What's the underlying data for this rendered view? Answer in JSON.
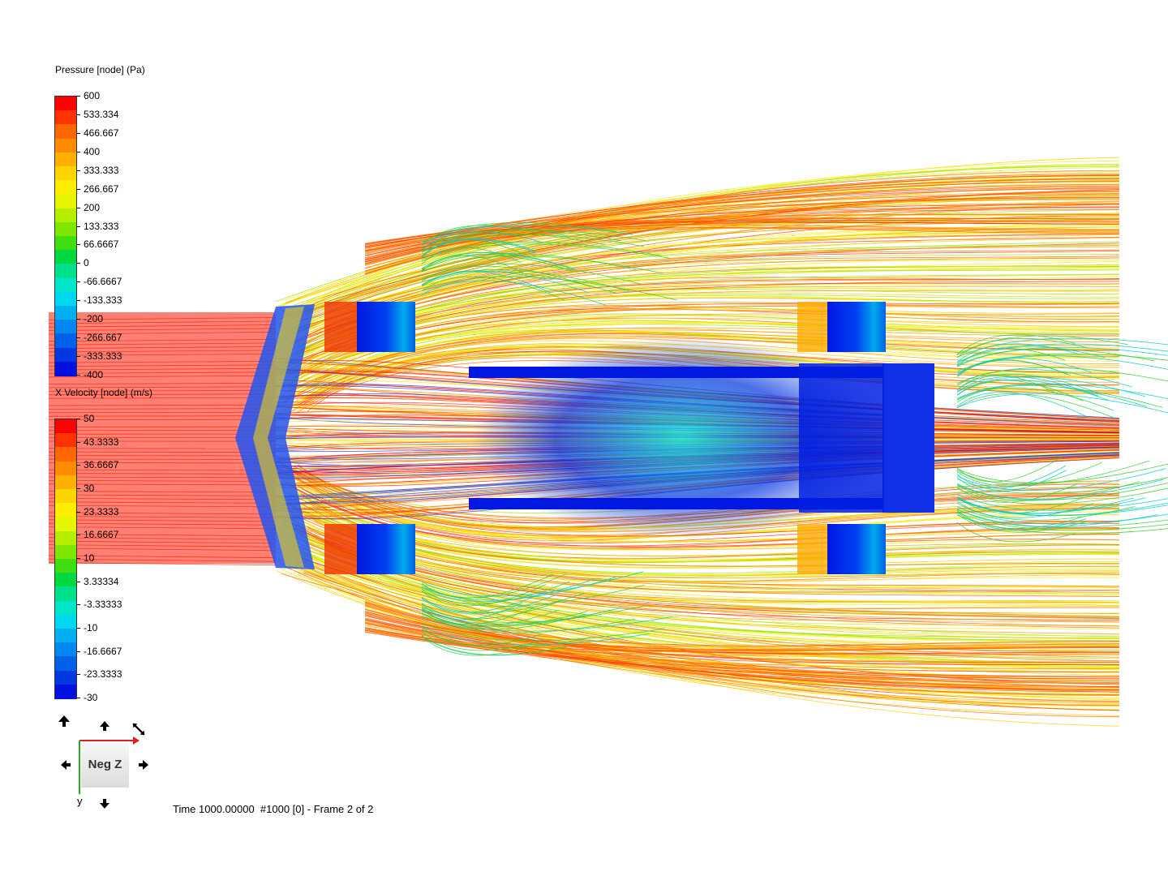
{
  "pressure_legend": {
    "title": "Pressure [node] (Pa)",
    "ticks": [
      "600",
      "533.334",
      "466.667",
      "400",
      "333.333",
      "266.667",
      "200",
      "133.333",
      "66.6667",
      "0",
      "-66.6667",
      "-133.333",
      "-200",
      "-266.667",
      "-333.333",
      "-400"
    ],
    "colors": [
      "#ff0000",
      "#ff3300",
      "#ff6600",
      "#ff8c00",
      "#ffb000",
      "#ffd500",
      "#ffee00",
      "#e6f500",
      "#b5ee00",
      "#7fe600",
      "#40dd10",
      "#00d840",
      "#00e08a",
      "#00e6c8",
      "#00d8f0",
      "#00b0f0",
      "#0088f0",
      "#0060e8",
      "#0038e0",
      "#0010e0"
    ]
  },
  "velocity_legend": {
    "title": "X Velocity [node] (m/s)",
    "ticks": [
      "50",
      "43.3333",
      "36.6667",
      "30",
      "23.3333",
      "16.6667",
      "10",
      "3.33334",
      "-3.33333",
      "-10",
      "-16.6667",
      "-23.3333",
      "-30"
    ],
    "colors": [
      "#ff0000",
      "#ff3300",
      "#ff6600",
      "#ff8c00",
      "#ffb000",
      "#ffd500",
      "#ffee00",
      "#e6f500",
      "#b5ee00",
      "#7fe600",
      "#40dd10",
      "#00d840",
      "#00e08a",
      "#00e6c8",
      "#00d8f0",
      "#00b0f0",
      "#0088f0",
      "#0060e8",
      "#0038e0",
      "#0010e0"
    ]
  },
  "status": {
    "time_label": "Time 1000.00000  #1000 [0] - Frame 2 of 2"
  },
  "orientation": {
    "face_label": "Neg Z",
    "y_axis_label": "y",
    "icons": [
      "rotate-up-icon",
      "pan-up-icon",
      "fit-view-icon",
      "pan-left-icon",
      "pan-right-icon",
      "pan-down-icon"
    ]
  },
  "scene": {
    "colors": {
      "high_pressure": "#ff0000",
      "mid": "#ffee00",
      "low": "#0010e0",
      "cyan": "#00e6e6",
      "green": "#40dd10"
    }
  }
}
